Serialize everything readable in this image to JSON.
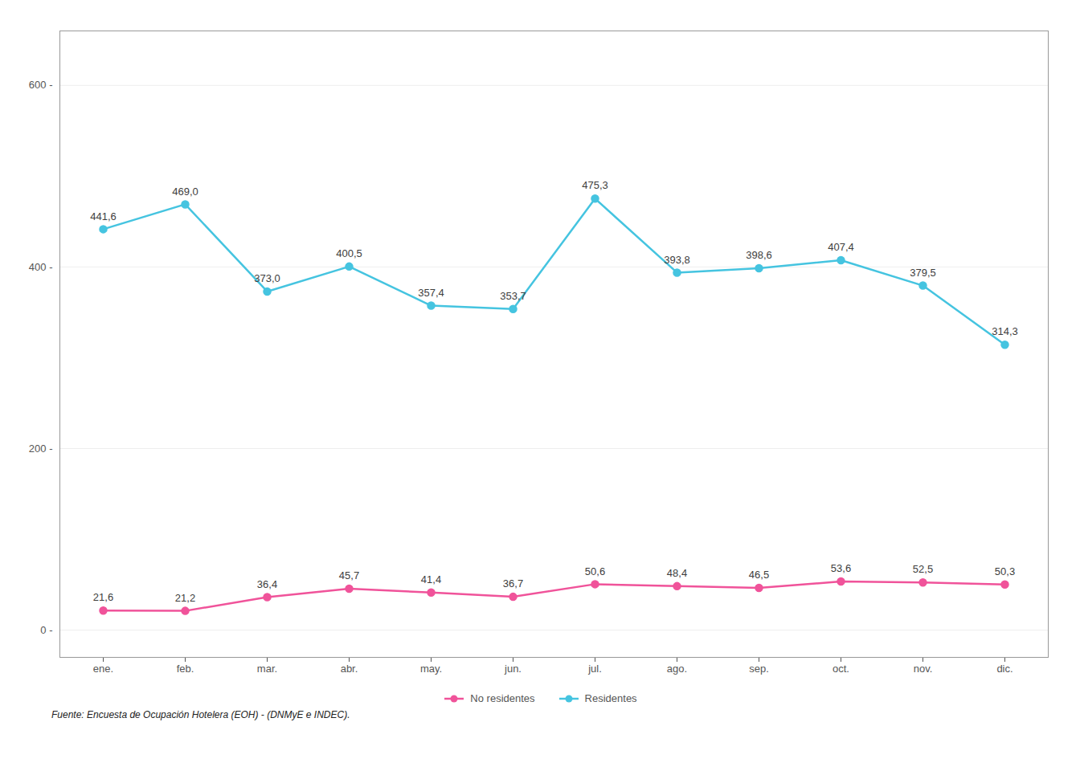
{
  "chart_data": {
    "type": "line",
    "caption": "Fuente: Encuesta de Ocupación Hotelera (EOH) - (DNMyE e INDEC).",
    "categories": [
      "ene.",
      "feb.",
      "mar.",
      "abr.",
      "may.",
      "jun.",
      "jul.",
      "ago.",
      "sep.",
      "oct.",
      "nov.",
      "dic."
    ],
    "series": [
      {
        "name": "Residentes",
        "color": "#45C4E0",
        "marker": "circle",
        "values": [
          441.6,
          469.0,
          373.0,
          400.5,
          357.4,
          353.7,
          475.3,
          393.8,
          398.6,
          407.4,
          379.5,
          314.3
        ],
        "value_labels": [
          "441,6",
          "469,0",
          "373,0",
          "400,5",
          "357,4",
          "353,7",
          "475,3",
          "393,8",
          "398,6",
          "407,4",
          "379,5",
          "314,3"
        ]
      },
      {
        "name": "No residentes",
        "color": "#F0539A",
        "marker": "circle",
        "values": [
          21.6,
          21.2,
          36.4,
          45.7,
          41.4,
          36.7,
          50.6,
          48.4,
          46.5,
          53.6,
          52.5,
          50.3
        ],
        "value_labels": [
          "21,6",
          "21,2",
          "36,4",
          "45,7",
          "41,4",
          "36,7",
          "50,6",
          "48,4",
          "46,5",
          "53,6",
          "52,5",
          "50,3"
        ]
      }
    ],
    "ylim": [
      -30,
      660
    ],
    "yticks": [
      {
        "value": 0,
        "label": "0 -"
      },
      {
        "value": 200,
        "label": "200 -"
      },
      {
        "value": 400,
        "label": "400 -"
      },
      {
        "value": 600,
        "label": "600 -"
      }
    ],
    "grid": true,
    "legend": "bottom",
    "data_labels": true
  }
}
